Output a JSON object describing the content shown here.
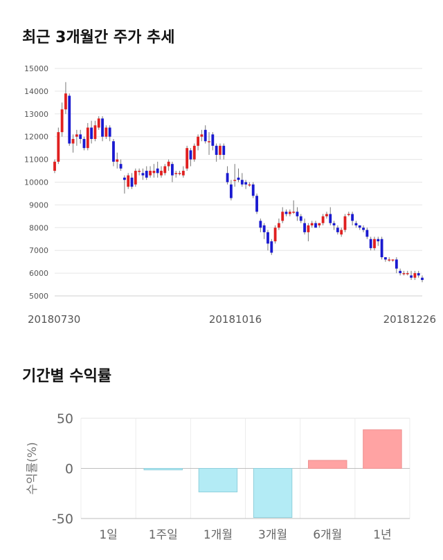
{
  "sections": {
    "price_title": "최근 3개월간 주가 추세",
    "return_title": "기간별 수익률"
  },
  "chart_data": [
    {
      "type": "candlestick",
      "title": "최근 3개월간 주가 추세",
      "ylim": [
        5000,
        15000
      ],
      "y_ticks": [
        5000,
        6000,
        7000,
        8000,
        9000,
        10000,
        11000,
        12000,
        13000,
        14000,
        15000
      ],
      "x_tick_labels": [
        "20180730",
        "20181016",
        "20181226"
      ],
      "grid": true,
      "colors": {
        "up": "#e02020",
        "down": "#1a1ad0",
        "grid": "#e6e6e6"
      },
      "series": [
        [
          10500,
          10900,
          10400,
          11000
        ],
        [
          10900,
          12200,
          10800,
          12400
        ],
        [
          12200,
          13200,
          12000,
          13500
        ],
        [
          13200,
          13900,
          13000,
          14400
        ],
        [
          13800,
          11700,
          11600,
          13900
        ],
        [
          11700,
          11900,
          11300,
          12100
        ],
        [
          12000,
          12100,
          11600,
          12300
        ],
        [
          12100,
          11900,
          11700,
          12300
        ],
        [
          11900,
          11500,
          11400,
          12000
        ],
        [
          11500,
          12400,
          11400,
          12600
        ],
        [
          12400,
          11900,
          11700,
          12700
        ],
        [
          11900,
          12500,
          11800,
          12700
        ],
        [
          12400,
          12800,
          12300,
          12900
        ],
        [
          12800,
          12000,
          11800,
          12900
        ],
        [
          12000,
          12400,
          11900,
          12500
        ],
        [
          12400,
          12000,
          11800,
          12500
        ],
        [
          11800,
          10900,
          10700,
          11900
        ],
        [
          10900,
          11000,
          10600,
          11300
        ],
        [
          10800,
          10600,
          10500,
          11000
        ],
        [
          10200,
          10100,
          9500,
          10300
        ],
        [
          9800,
          10300,
          9700,
          10400
        ],
        [
          10200,
          9800,
          9700,
          10400
        ],
        [
          9900,
          10500,
          9800,
          10600
        ],
        [
          10500,
          10500,
          10300,
          10600
        ],
        [
          10400,
          10300,
          10100,
          10600
        ],
        [
          10500,
          10200,
          10100,
          10700
        ],
        [
          10300,
          10500,
          10200,
          10700
        ],
        [
          10400,
          10500,
          10200,
          10800
        ],
        [
          10600,
          10400,
          10200,
          10900
        ],
        [
          10300,
          10500,
          10200,
          10700
        ],
        [
          10400,
          10700,
          10300,
          10800
        ],
        [
          10700,
          10900,
          10500,
          11000
        ],
        [
          10800,
          10300,
          10000,
          10900
        ],
        [
          10400,
          10400,
          10200,
          10500
        ],
        [
          10400,
          10400,
          10300,
          10500
        ],
        [
          10300,
          10500,
          10200,
          10700
        ],
        [
          10600,
          11500,
          10500,
          11600
        ],
        [
          11400,
          11000,
          10700,
          11500
        ],
        [
          11000,
          11600,
          10900,
          11700
        ],
        [
          11600,
          12000,
          11400,
          12100
        ],
        [
          12000,
          12100,
          11800,
          12300
        ],
        [
          12300,
          11800,
          11700,
          12500
        ],
        [
          11800,
          11800,
          11200,
          12200
        ],
        [
          12100,
          11600,
          11400,
          12200
        ],
        [
          11600,
          11200,
          10900,
          11700
        ],
        [
          11200,
          11600,
          11000,
          11700
        ],
        [
          11600,
          11200,
          11000,
          11700
        ],
        [
          10400,
          10000,
          9900,
          10700
        ],
        [
          9900,
          9300,
          9200,
          10100
        ],
        [
          10100,
          10100,
          9800,
          10800
        ],
        [
          10200,
          10100,
          10000,
          10600
        ],
        [
          10100,
          9900,
          9800,
          10400
        ],
        [
          10000,
          9900,
          9700,
          10100
        ],
        [
          9900,
          9900,
          9800,
          10000
        ],
        [
          9900,
          9400,
          9300,
          10000
        ],
        [
          9400,
          8700,
          8600,
          9500
        ],
        [
          8300,
          8000,
          7800,
          8400
        ],
        [
          8100,
          7800,
          7500,
          8200
        ],
        [
          7800,
          7300,
          7000,
          7900
        ],
        [
          7400,
          6900,
          6800,
          7500
        ],
        [
          7400,
          8000,
          7300,
          8100
        ],
        [
          8000,
          8200,
          7900,
          8400
        ],
        [
          8300,
          8700,
          8200,
          8900
        ],
        [
          8700,
          8600,
          8500,
          8800
        ],
        [
          8600,
          8700,
          8500,
          8800
        ],
        [
          8700,
          8700,
          8600,
          9200
        ],
        [
          8700,
          8500,
          8300,
          8900
        ],
        [
          8500,
          8300,
          8200,
          8600
        ],
        [
          8200,
          7800,
          7700,
          8400
        ],
        [
          7800,
          8100,
          7400,
          8200
        ],
        [
          8100,
          8200,
          8000,
          8300
        ],
        [
          8200,
          8000,
          8000,
          8300
        ],
        [
          8100,
          8200,
          8000,
          8200
        ],
        [
          8200,
          8500,
          8100,
          8600
        ],
        [
          8500,
          8600,
          8400,
          8700
        ],
        [
          8600,
          8200,
          8100,
          8900
        ],
        [
          8200,
          8100,
          7900,
          8300
        ],
        [
          8000,
          7800,
          7700,
          8100
        ],
        [
          7700,
          7900,
          7600,
          8000
        ],
        [
          7900,
          8500,
          7800,
          8600
        ],
        [
          8600,
          8600,
          8500,
          8700
        ],
        [
          8600,
          8300,
          8100,
          8700
        ],
        [
          8200,
          8100,
          8000,
          8300
        ],
        [
          8100,
          8000,
          7900,
          8100
        ],
        [
          8000,
          7900,
          7800,
          8100
        ],
        [
          7900,
          7600,
          7500,
          8000
        ],
        [
          7500,
          7100,
          7000,
          7600
        ],
        [
          7100,
          7500,
          7000,
          7600
        ],
        [
          7500,
          7400,
          7200,
          7600
        ],
        [
          7500,
          6700,
          6600,
          7600
        ],
        [
          6700,
          6600,
          6500,
          6700
        ],
        [
          6600,
          6600,
          6500,
          6700
        ],
        [
          6600,
          6600,
          6500,
          6600
        ],
        [
          6600,
          6200,
          6000,
          6700
        ],
        [
          6100,
          6000,
          5900,
          6200
        ],
        [
          6000,
          6000,
          5900,
          6100
        ],
        [
          6000,
          6000,
          5900,
          6100
        ],
        [
          5900,
          5800,
          5700,
          6100
        ],
        [
          5800,
          6000,
          5700,
          6100
        ],
        [
          6000,
          5900,
          5800,
          6100
        ],
        [
          5800,
          5700,
          5600,
          5900
        ]
      ]
    },
    {
      "type": "bar",
      "title": "기간별 수익률",
      "ylabel": "수익률(%)",
      "categories": [
        "1일",
        "1주일",
        "1개월",
        "3개월",
        "6개월",
        "1년"
      ],
      "values": [
        0,
        -1.5,
        -23.5,
        -49,
        8,
        38.5
      ],
      "ylim": [
        -50,
        50
      ],
      "y_ticks": [
        50,
        0,
        -50
      ],
      "colors": {
        "positive": "#ffa3a3",
        "negative": "#b3ebf5"
      }
    }
  ]
}
